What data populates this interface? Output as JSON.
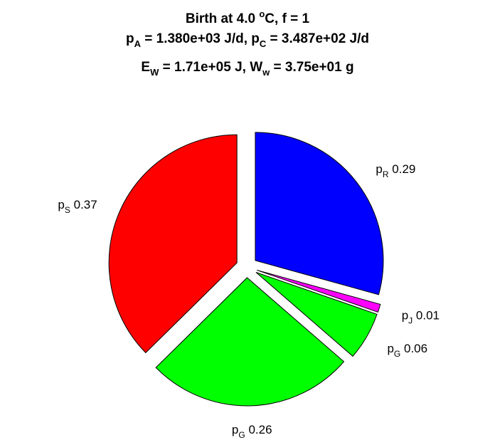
{
  "title": {
    "line1": {
      "prefix": "Birth at 4.0 ",
      "sup": "o",
      "suffix": "C, f = 1"
    },
    "line2": {
      "a_sym": "p",
      "a_sub": "A",
      "a_val": " = 1.380e+03 J/d, ",
      "c_sym": "p",
      "c_sub": "C",
      "c_val": " = 3.487e+02 J/d"
    },
    "line3": {
      "e_sym": "E",
      "e_sub": "W",
      "e_val": " = 1.71e+05 J, ",
      "w_sym": "W",
      "w_sub": "w",
      "w_val": " = 3.75e+01 g"
    }
  },
  "chart_data": {
    "type": "pie",
    "slices": [
      {
        "sym": "p",
        "sub": "R",
        "value": 0.29,
        "value_label": "0.29",
        "color": "#0000ff"
      },
      {
        "sym": "p",
        "sub": "J",
        "value": 0.01,
        "value_label": "0.01",
        "color": "#ff00ff"
      },
      {
        "sym": "p",
        "sub": "G",
        "value": 0.06,
        "value_label": "0.06",
        "color": "#00ff00"
      },
      {
        "sym": "p",
        "sub": "G",
        "value": 0.26,
        "value_label": "0.26",
        "color": "#00ff00"
      },
      {
        "sym": "p",
        "sub": "S",
        "value": 0.37,
        "value_label": "0.37",
        "color": "#ff0000"
      }
    ],
    "exploded": true,
    "start": "top",
    "direction": "clockwise",
    "edge_color": "#000000"
  }
}
